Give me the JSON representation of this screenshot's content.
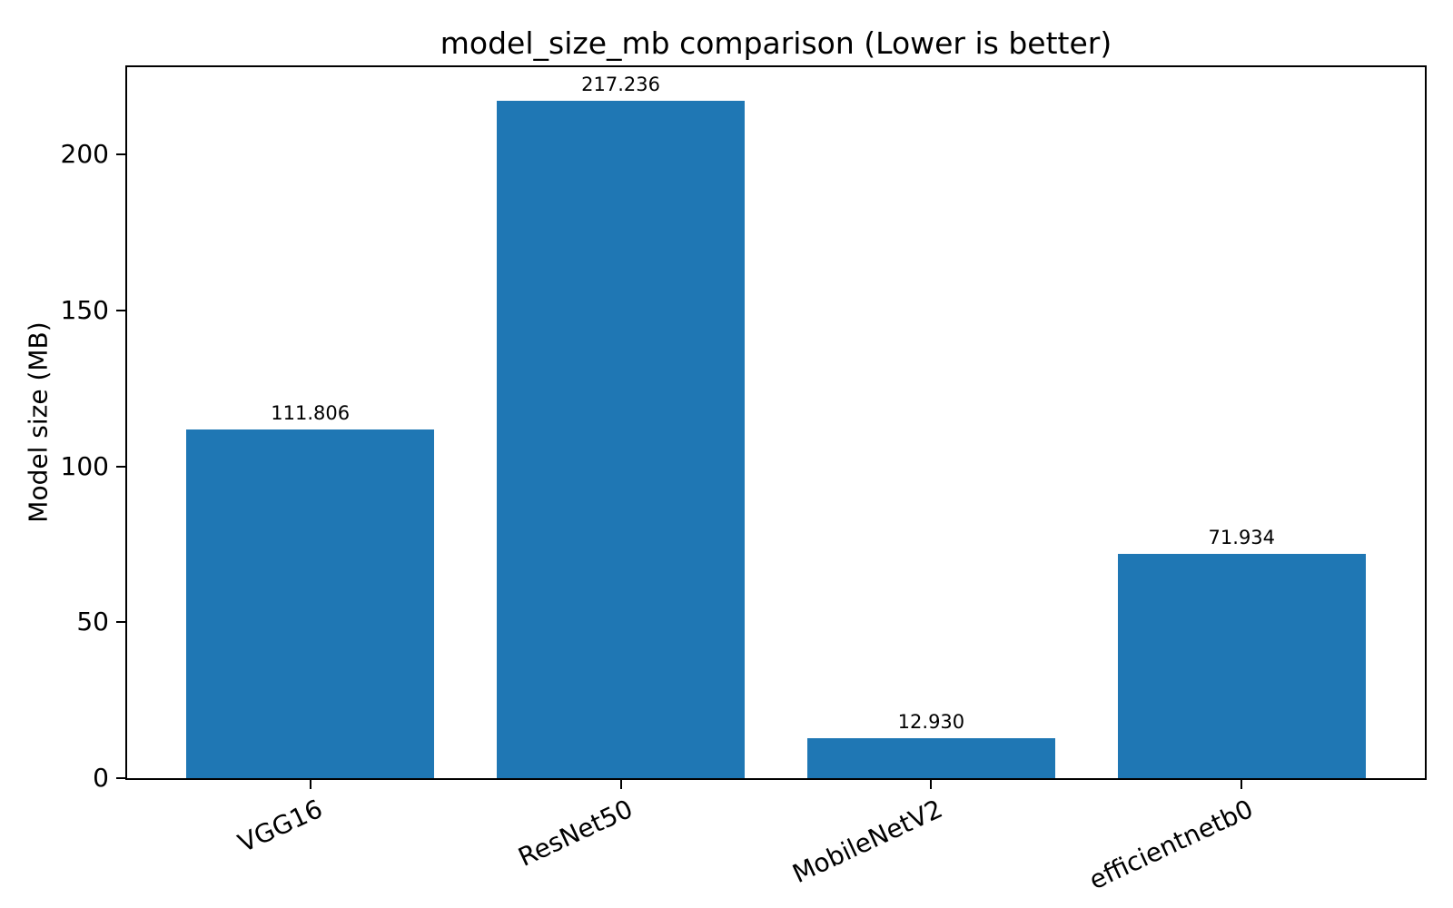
{
  "chart_data": {
    "type": "bar",
    "title": "model_size_mb comparison (Lower is better)",
    "xlabel": "",
    "ylabel": "Model size (MB)",
    "categories": [
      "VGG16",
      "ResNet50",
      "MobileNetV2",
      "efficientnetb0"
    ],
    "values": [
      111.806,
      217.236,
      12.93,
      71.934
    ],
    "value_labels": [
      "111.806",
      "217.236",
      "12.930",
      "71.934"
    ],
    "yticks": [
      0,
      50,
      100,
      150,
      200
    ],
    "ytick_labels": [
      "0",
      "50",
      "100",
      "150",
      "200"
    ],
    "ylim": [
      0,
      228.1
    ],
    "bar_color": "#1f77b4",
    "axis_color": "#000000",
    "text_color": "#000000",
    "background_color": "#ffffff",
    "grid": false,
    "legend": "none",
    "xtick_rotation_deg": 25
  }
}
